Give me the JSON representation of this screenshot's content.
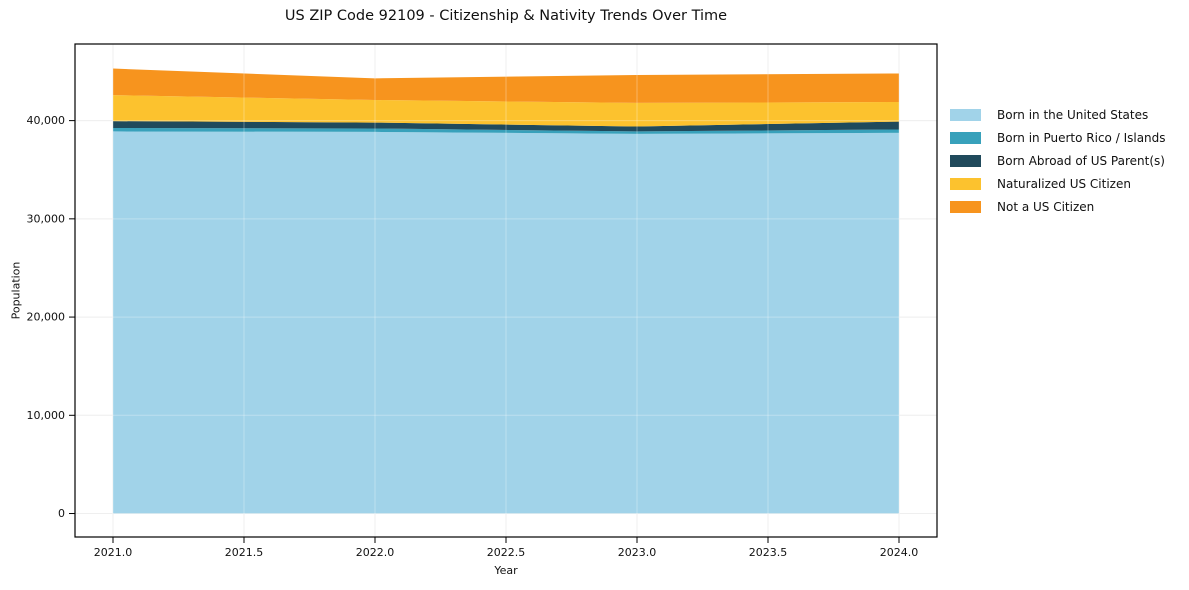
{
  "chart": {
    "title": "US ZIP Code 92109 - Citizenship & Nativity Trends Over Time",
    "xlabel": "Year",
    "ylabel": "Population"
  },
  "chart_data": {
    "type": "area",
    "stacked": true,
    "title": "US ZIP Code 92109 - Citizenship & Nativity Trends Over Time",
    "xlabel": "Year",
    "ylabel": "Population",
    "x": [
      2021,
      2022,
      2023,
      2024
    ],
    "series": [
      {
        "name": "Born in the United States",
        "color": "#a1d3e9",
        "values": [
          38900,
          38850,
          38650,
          38750
        ]
      },
      {
        "name": "Born in Puerto Rico / Islands",
        "color": "#38a1bb",
        "values": [
          350,
          350,
          250,
          350
        ]
      },
      {
        "name": "Born Abroad of US Parent(s)",
        "color": "#204a5c",
        "values": [
          700,
          600,
          500,
          800
        ]
      },
      {
        "name": "Naturalized US Citizen",
        "color": "#fcc22e",
        "values": [
          2650,
          2300,
          2400,
          2000
        ]
      },
      {
        "name": "Not a US Citizen",
        "color": "#f7941e",
        "values": [
          2700,
          2200,
          2850,
          2900
        ]
      }
    ],
    "stack_totals": [
      45300,
      44300,
      44650,
      44800
    ],
    "x_tick_labels": [
      "2021.0",
      "2021.5",
      "2022.0",
      "2022.5",
      "2023.0",
      "2023.5",
      "2024.0"
    ],
    "x_tick_values": [
      2021,
      2021.5,
      2022,
      2022.5,
      2023,
      2023.5,
      2024
    ],
    "y_tick_labels": [
      "0",
      "10,000",
      "20,000",
      "30,000",
      "40,000"
    ],
    "y_tick_values": [
      0,
      10000,
      20000,
      30000,
      40000
    ],
    "xlim": [
      2020.855,
      2024.145
    ],
    "ylim": [
      -2390,
      47800
    ],
    "grid": true,
    "grid_color": "#e9e9e9",
    "border_color": "#000000",
    "background_color": "#ffffff",
    "legend_position": "right"
  }
}
